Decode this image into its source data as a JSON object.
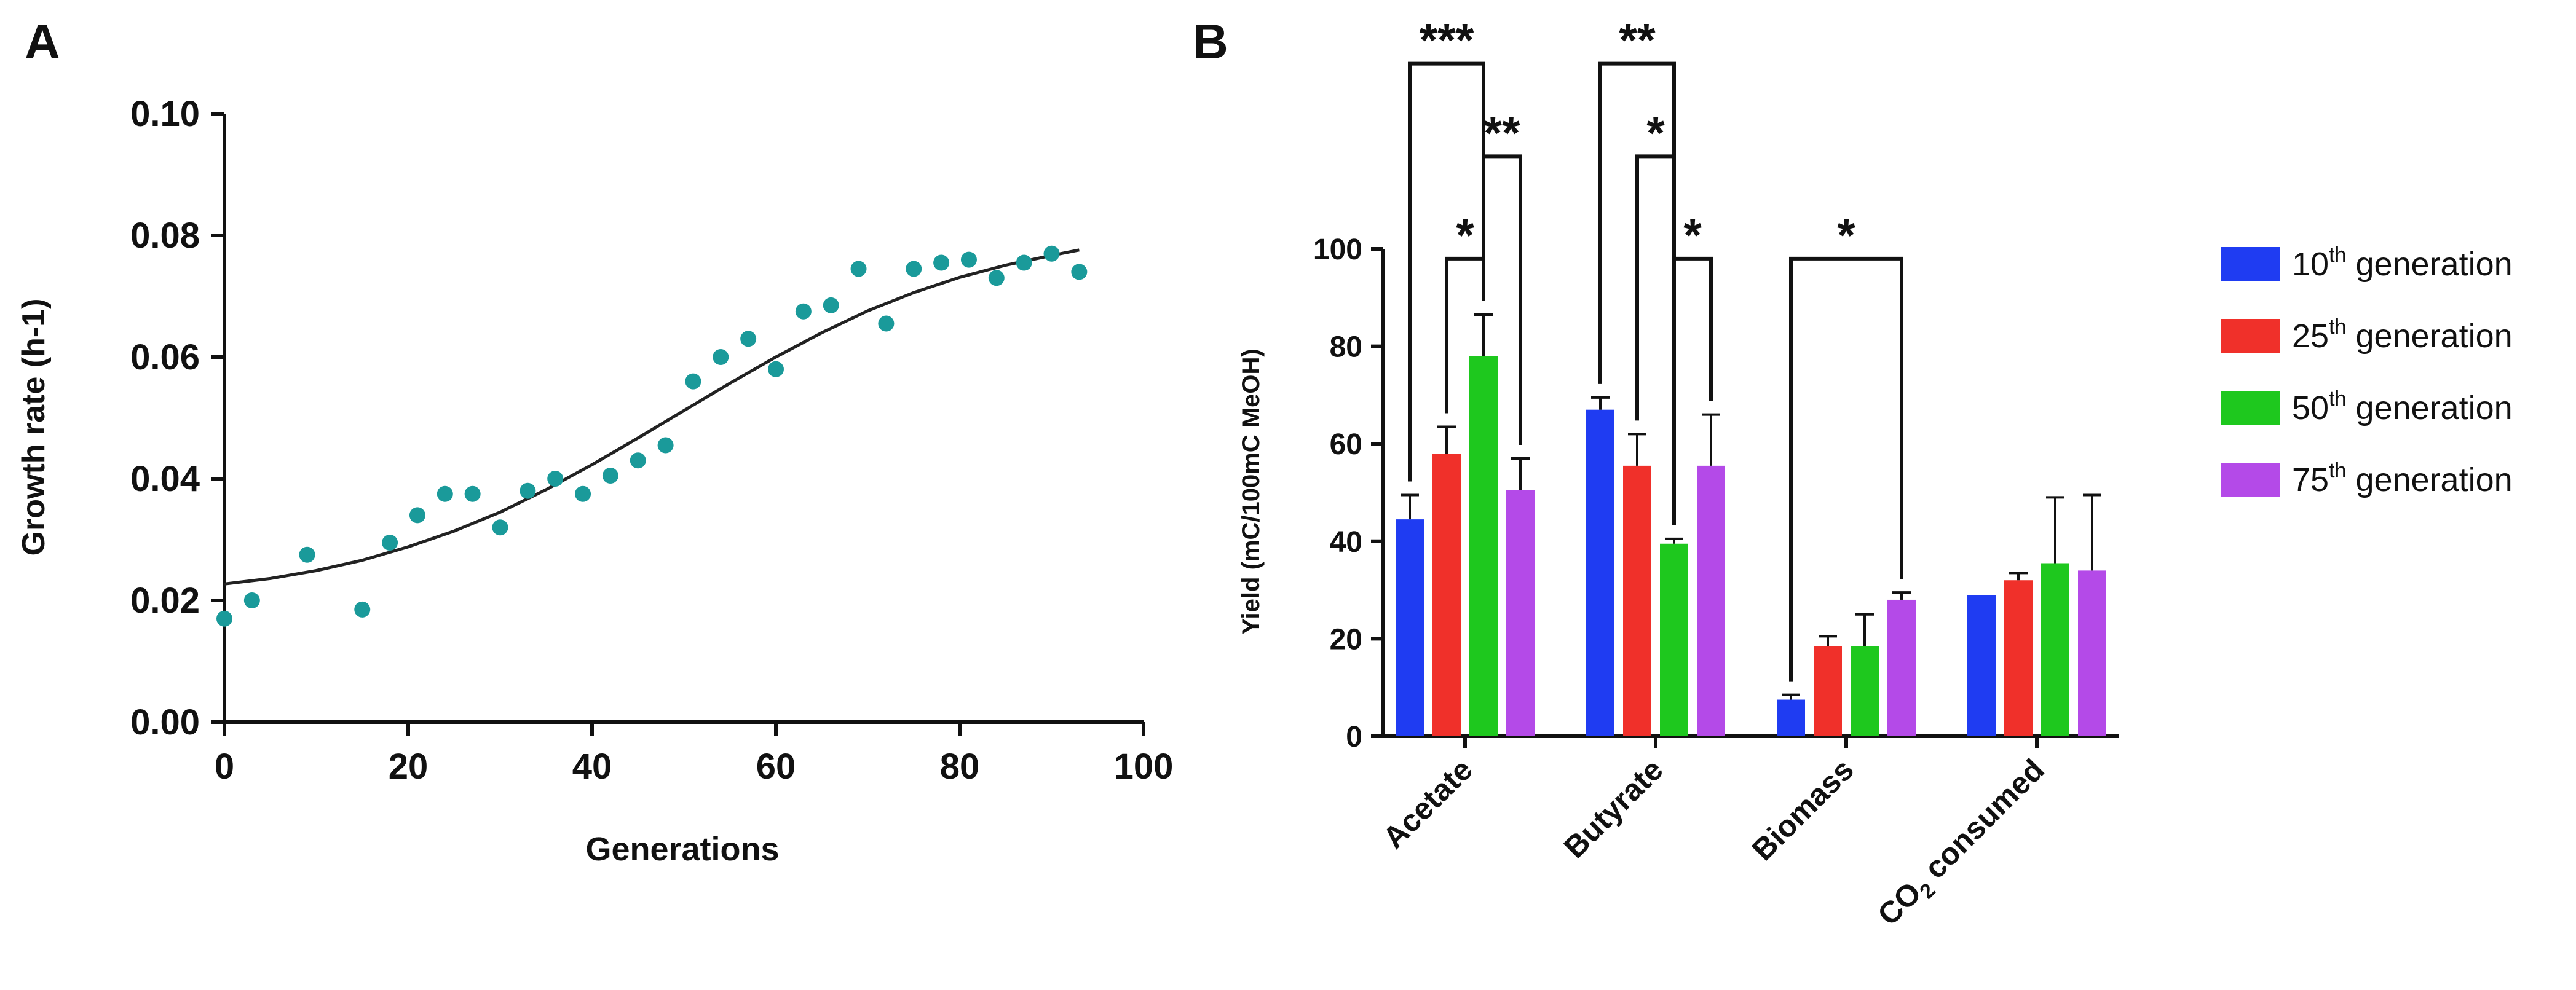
{
  "colors": {
    "axis": "#111111",
    "point": "#1a9a9a",
    "fit": "#222222",
    "gen10": "#1f3cf2",
    "gen25": "#f0302a",
    "gen50": "#1ec81e",
    "gen75": "#b44ae8",
    "errorbar": "#111111"
  },
  "chart_data": [
    {
      "panel": "A",
      "type": "scatter",
      "xlabel": "Generations",
      "ylabel": "Growth rate  (h-1)",
      "xlim": [
        0,
        100
      ],
      "ylim": [
        0,
        0.1
      ],
      "xticks": [
        0,
        20,
        40,
        60,
        80,
        100
      ],
      "xtick_labels": [
        "0",
        "20",
        "40",
        "60",
        "80",
        "100"
      ],
      "yticks": [
        0,
        0.02,
        0.04,
        0.06,
        0.08,
        0.1
      ],
      "ytick_labels": [
        "0.00",
        "0.02",
        "0.04",
        "0.06",
        "0.08",
        "0.10"
      ],
      "grid": false,
      "points": [
        {
          "x": 0,
          "y": 0.017
        },
        {
          "x": 3,
          "y": 0.02
        },
        {
          "x": 9,
          "y": 0.0275
        },
        {
          "x": 15,
          "y": 0.0185
        },
        {
          "x": 18,
          "y": 0.0295
        },
        {
          "x": 21,
          "y": 0.034
        },
        {
          "x": 24,
          "y": 0.0375
        },
        {
          "x": 27,
          "y": 0.0375
        },
        {
          "x": 30,
          "y": 0.032
        },
        {
          "x": 33,
          "y": 0.038
        },
        {
          "x": 36,
          "y": 0.04
        },
        {
          "x": 39,
          "y": 0.0375
        },
        {
          "x": 42,
          "y": 0.0405
        },
        {
          "x": 45,
          "y": 0.043
        },
        {
          "x": 48,
          "y": 0.0455
        },
        {
          "x": 51,
          "y": 0.056
        },
        {
          "x": 54,
          "y": 0.06
        },
        {
          "x": 57,
          "y": 0.063
        },
        {
          "x": 60,
          "y": 0.058
        },
        {
          "x": 63,
          "y": 0.0675
        },
        {
          "x": 66,
          "y": 0.0685
        },
        {
          "x": 69,
          "y": 0.0745
        },
        {
          "x": 72,
          "y": 0.0655
        },
        {
          "x": 75,
          "y": 0.0745
        },
        {
          "x": 78,
          "y": 0.0755
        },
        {
          "x": 81,
          "y": 0.076
        },
        {
          "x": 84,
          "y": 0.073
        },
        {
          "x": 87,
          "y": 0.0755
        },
        {
          "x": 90,
          "y": 0.077
        },
        {
          "x": 93,
          "y": 0.074
        }
      ],
      "fit_curve": [
        {
          "x": 0,
          "y": 0.0227
        },
        {
          "x": 5,
          "y": 0.0236
        },
        {
          "x": 10,
          "y": 0.0249
        },
        {
          "x": 15,
          "y": 0.0266
        },
        {
          "x": 20,
          "y": 0.0288
        },
        {
          "x": 25,
          "y": 0.0314
        },
        {
          "x": 30,
          "y": 0.0345
        },
        {
          "x": 35,
          "y": 0.0382
        },
        {
          "x": 40,
          "y": 0.0423
        },
        {
          "x": 45,
          "y": 0.0467
        },
        {
          "x": 50,
          "y": 0.0512
        },
        {
          "x": 55,
          "y": 0.0557
        },
        {
          "x": 60,
          "y": 0.06
        },
        {
          "x": 65,
          "y": 0.064
        },
        {
          "x": 70,
          "y": 0.0676
        },
        {
          "x": 75,
          "y": 0.0706
        },
        {
          "x": 80,
          "y": 0.0731
        },
        {
          "x": 85,
          "y": 0.0751
        },
        {
          "x": 90,
          "y": 0.0767
        },
        {
          "x": 93,
          "y": 0.0776
        }
      ]
    },
    {
      "panel": "B",
      "type": "bar",
      "ylabel": "Yield (mC/100mC MeOH)",
      "ylim": [
        0,
        100
      ],
      "yticks": [
        0,
        20,
        40,
        60,
        80,
        100
      ],
      "ytick_labels": [
        "0",
        "20",
        "40",
        "60",
        "80",
        "100"
      ],
      "categories": [
        "Acetate",
        "Butyrate",
        "Biomass",
        "CO"
      ],
      "category_subscript": [
        "",
        "",
        "",
        "2"
      ],
      "category_suffix": [
        "",
        "",
        "",
        " consumed"
      ],
      "series": [
        {
          "name": "10",
          "sup": "th",
          "label": " generation",
          "color_key": "gen10",
          "values": [
            44.5,
            67,
            7.5,
            29
          ],
          "errors": [
            5,
            2.5,
            1,
            0
          ]
        },
        {
          "name": "25",
          "sup": "th",
          "label": " generation",
          "color_key": "gen25",
          "values": [
            58,
            55.5,
            18.5,
            32
          ],
          "errors": [
            5.5,
            6.5,
            2,
            1.5
          ]
        },
        {
          "name": "50",
          "sup": "th",
          "label": " generation",
          "color_key": "gen50",
          "values": [
            78,
            39.5,
            18.5,
            35.5
          ],
          "errors": [
            8.5,
            1,
            6.5,
            13.5
          ]
        },
        {
          "name": "75",
          "sup": "th",
          "label": " generation",
          "color_key": "gen75",
          "values": [
            50.5,
            55.5,
            28,
            34
          ],
          "errors": [
            6.5,
            10.5,
            1.5,
            15.5
          ]
        }
      ],
      "significance": [
        {
          "category": 0,
          "from_series": 0,
          "to_series": 2,
          "label": "***",
          "level": 138
        },
        {
          "category": 0,
          "from_series": 2,
          "to_series": 3,
          "label": "**",
          "level": 119
        },
        {
          "category": 0,
          "from_series": 1,
          "to_series": 2,
          "label": "*",
          "level": 98
        },
        {
          "category": 1,
          "from_series": 0,
          "to_series": 2,
          "label": "**",
          "level": 138
        },
        {
          "category": 1,
          "from_series": 1,
          "to_series": 2,
          "label": "*",
          "level": 119
        },
        {
          "category": 1,
          "from_series": 2,
          "to_series": 3,
          "label": "*",
          "level": 98
        },
        {
          "category": 2,
          "from_series": 0,
          "to_series": 3,
          "label": "*",
          "level": 98
        }
      ]
    }
  ],
  "panel_labels": [
    "A",
    "B"
  ]
}
